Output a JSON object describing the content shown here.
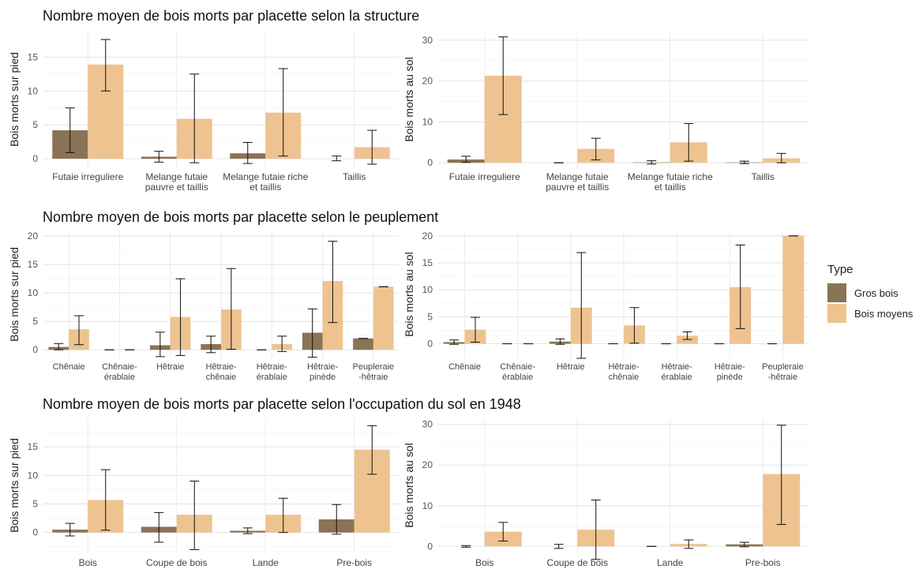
{
  "titles": {
    "row1": "Nombre moyen de bois morts par placette selon la structure",
    "row2": "Nombre moyen de bois morts par placette selon le peuplement",
    "row3": "Nombre moyen de bois morts par placette selon l'occupation du sol en 1948"
  },
  "legend": {
    "title": "Type",
    "items": [
      {
        "label": "Gros bois",
        "color": "#8B7355"
      },
      {
        "label": "Bois moyens",
        "color": "#EEC390"
      }
    ]
  },
  "chart_data": [
    {
      "type": "bar",
      "ylabel": "Bois morts sur pied",
      "ylim": [
        -1.5,
        19
      ],
      "yticks": [
        0,
        5,
        10,
        15
      ],
      "categories": [
        [
          "Futaie irreguliere"
        ],
        [
          "Melange futaie",
          "pauvre et taillis"
        ],
        [
          "Melange futaie riche",
          "et taillis"
        ],
        [
          "Taillis"
        ]
      ],
      "series": [
        {
          "name": "Gros bois",
          "values": [
            4.2,
            0.3,
            0.8,
            0.0
          ],
          "err_low": [
            0.9,
            -0.5,
            -0.7,
            -0.3
          ],
          "err_high": [
            7.5,
            1.1,
            2.4,
            0.4
          ]
        },
        {
          "name": "Bois moyens",
          "values": [
            13.9,
            5.9,
            6.8,
            1.7
          ],
          "err_low": [
            10.0,
            -0.6,
            0.4,
            -0.8
          ],
          "err_high": [
            17.6,
            12.5,
            13.3,
            4.2
          ]
        }
      ]
    },
    {
      "type": "bar",
      "ylabel": "Bois morts au sol",
      "ylim": [
        -1.5,
        32.5
      ],
      "yticks": [
        0,
        10,
        20,
        30
      ],
      "categories": [
        [
          "Futaie irreguliere"
        ],
        [
          "Melange futaie",
          "pauvre et taillis"
        ],
        [
          "Melange futaie riche",
          "et taillis"
        ],
        [
          "Taillis"
        ]
      ],
      "series": [
        {
          "name": "Gros bois",
          "values": [
            0.8,
            0.0,
            0.1,
            0.1
          ],
          "err_low": [
            0.1,
            0.0,
            -0.3,
            -0.2
          ],
          "err_high": [
            1.6,
            0.0,
            0.5,
            0.4
          ]
        },
        {
          "name": "Bois moyens",
          "values": [
            21.3,
            3.4,
            5.0,
            1.1
          ],
          "err_low": [
            11.8,
            0.7,
            0.4,
            0.0
          ],
          "err_high": [
            30.8,
            6.0,
            9.6,
            2.3
          ]
        }
      ]
    },
    {
      "type": "bar",
      "ylabel": "Bois morts sur pied",
      "ylim": [
        -1.5,
        21
      ],
      "yticks": [
        0,
        5,
        10,
        15,
        20
      ],
      "categories": [
        [
          "Chênaie"
        ],
        [
          "Chênaie-",
          "érablaie"
        ],
        [
          "Hêtraie"
        ],
        [
          "Hêtraie-",
          "chênaie"
        ],
        [
          "Hêtraie-",
          "érablaie"
        ],
        [
          "Hêtraie-",
          "pinède"
        ],
        [
          "Peupleraie",
          "-hêtraie"
        ]
      ],
      "series": [
        {
          "name": "Gros bois",
          "values": [
            0.5,
            0.0,
            0.8,
            1.0,
            0.0,
            3.0,
            2.0
          ],
          "err_low": [
            0.0,
            0.0,
            -1.2,
            -0.5,
            0.0,
            -1.3,
            2.0
          ],
          "err_high": [
            1.1,
            0.0,
            3.1,
            2.4,
            0.0,
            7.2,
            2.0
          ]
        },
        {
          "name": "Bois moyens",
          "values": [
            3.6,
            0.0,
            5.8,
            7.1,
            1.0,
            12.1,
            11.1
          ],
          "err_low": [
            0.9,
            0.0,
            -1.0,
            0.1,
            -0.3,
            4.8,
            11.1
          ],
          "err_high": [
            6.0,
            0.0,
            12.5,
            14.3,
            2.4,
            19.1,
            11.1
          ]
        }
      ]
    },
    {
      "type": "bar",
      "ylabel": "Bois morts au sol",
      "ylim": [
        -2.7,
        21
      ],
      "yticks": [
        0,
        5,
        10,
        15,
        20
      ],
      "categories": [
        [
          "Chênaie"
        ],
        [
          "Chênaie-",
          "érablaie"
        ],
        [
          "Hêtraie"
        ],
        [
          "Hêtraie-",
          "chênaie"
        ],
        [
          "Hêtraie-",
          "érablaie"
        ],
        [
          "Hêtraie-",
          "pinède"
        ],
        [
          "Peupleraie",
          "-hêtraie"
        ]
      ],
      "series": [
        {
          "name": "Gros bois",
          "values": [
            0.3,
            0.0,
            0.4,
            0.0,
            0.0,
            0.0,
            0.0
          ],
          "err_low": [
            -0.1,
            0.0,
            -0.1,
            0.0,
            0.0,
            0.0,
            0.0
          ],
          "err_high": [
            0.7,
            0.0,
            0.9,
            0.0,
            0.0,
            0.0,
            0.0
          ]
        },
        {
          "name": "Bois moyens",
          "values": [
            2.6,
            0.0,
            6.7,
            3.4,
            1.5,
            10.5,
            20.0
          ],
          "err_low": [
            0.3,
            0.0,
            -2.7,
            0.1,
            0.8,
            2.8,
            20.0
          ],
          "err_high": [
            4.9,
            0.0,
            16.9,
            6.7,
            2.2,
            18.3,
            20.0
          ]
        }
      ]
    },
    {
      "type": "bar",
      "ylabel": "Bois morts sur pied",
      "ylim": [
        -3.5,
        20
      ],
      "yticks": [
        0,
        5,
        10,
        15
      ],
      "categories": [
        [
          "Bois"
        ],
        [
          "Coupe de bois"
        ],
        [
          "Lande"
        ],
        [
          "Pre-bois"
        ]
      ],
      "series": [
        {
          "name": "Gros bois",
          "values": [
            0.5,
            1.0,
            0.3,
            2.3
          ],
          "err_low": [
            -0.6,
            -1.7,
            -0.2,
            -0.3
          ],
          "err_high": [
            1.6,
            3.5,
            0.8,
            4.9
          ]
        },
        {
          "name": "Bois moyens",
          "values": [
            5.7,
            3.1,
            3.1,
            14.5
          ],
          "err_low": [
            0.4,
            -3.0,
            0.0,
            10.2
          ],
          "err_high": [
            11.0,
            9.0,
            6.0,
            18.7
          ]
        }
      ]
    },
    {
      "type": "bar",
      "ylabel": "Bois morts au sol",
      "ylim": [
        -1.5,
        31.5
      ],
      "yticks": [
        0,
        10,
        20,
        30
      ],
      "categories": [
        [
          "Bois"
        ],
        [
          "Coupe de bois"
        ],
        [
          "Lande"
        ],
        [
          "Pre-bois"
        ]
      ],
      "series": [
        {
          "name": "Gros bois",
          "values": [
            0.0,
            0.0,
            0.0,
            0.5
          ],
          "err_low": [
            -0.2,
            -0.5,
            0.0,
            -0.1
          ],
          "err_high": [
            0.2,
            0.5,
            0.0,
            1.0
          ]
        },
        {
          "name": "Bois moyens",
          "values": [
            3.6,
            4.1,
            0.6,
            17.8
          ],
          "err_low": [
            1.3,
            -3.2,
            -0.5,
            5.4
          ],
          "err_high": [
            5.9,
            11.4,
            1.6,
            29.8
          ]
        }
      ]
    }
  ]
}
